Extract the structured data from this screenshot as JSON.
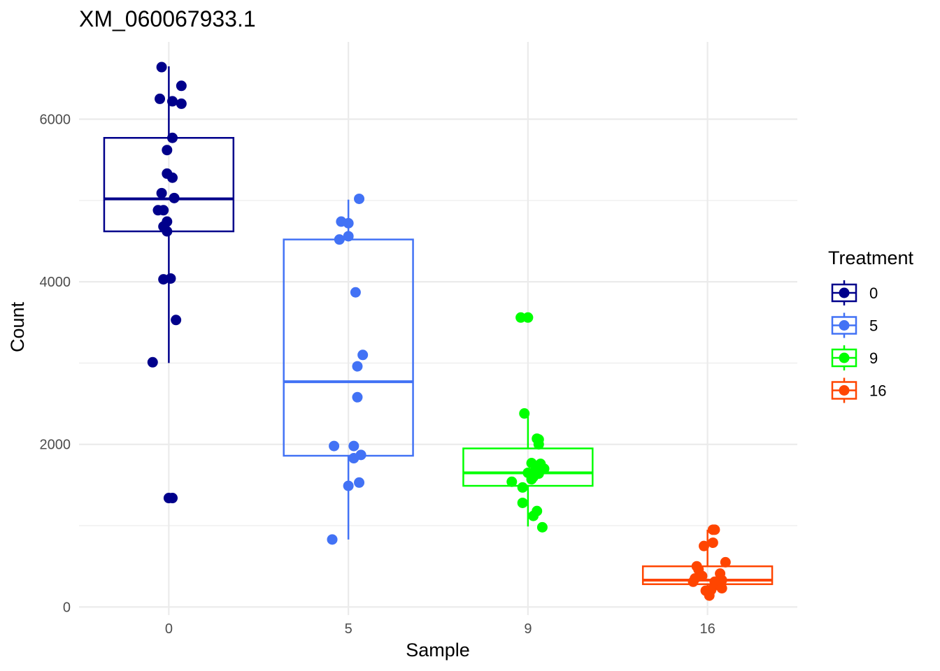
{
  "chart_data": {
    "type": "boxplot",
    "title": "XM_060067933.1",
    "xlabel": "Sample",
    "ylabel": "Count",
    "categories": [
      "0",
      "5",
      "9",
      "16"
    ],
    "y_ticks": [
      0,
      2000,
      4000,
      6000
    ],
    "y_tick_labels": [
      "0",
      "2000",
      "4000",
      "6000"
    ],
    "ylim": [
      -100,
      6950
    ],
    "grid": true,
    "legend": {
      "title": "Treatment",
      "position": "right",
      "entries": [
        "0",
        "5",
        "9",
        "16"
      ]
    },
    "series": [
      {
        "name": "0",
        "color": "#00008b",
        "box": {
          "whisker_low": 3000,
          "q1": 4620,
          "median": 5020,
          "q3": 5770,
          "whisker_high": 6650
        },
        "points": [
          [
            -0.04,
            6640
          ],
          [
            0.07,
            6410
          ],
          [
            -0.05,
            6250
          ],
          [
            0.02,
            6220
          ],
          [
            0.07,
            6190
          ],
          [
            0.02,
            5770
          ],
          [
            -0.01,
            5620
          ],
          [
            -0.01,
            5330
          ],
          [
            0.02,
            5280
          ],
          [
            -0.04,
            5090
          ],
          [
            0.03,
            5030
          ],
          [
            -0.06,
            4880
          ],
          [
            -0.03,
            4880
          ],
          [
            -0.01,
            4740
          ],
          [
            -0.03,
            4680
          ],
          [
            -0.01,
            4620
          ],
          [
            -0.03,
            4030
          ],
          [
            0.01,
            4040
          ],
          [
            0.04,
            3530
          ],
          [
            -0.09,
            3010
          ],
          [
            0.0,
            1340
          ],
          [
            0.02,
            1340
          ]
        ]
      },
      {
        "name": "5",
        "color": "#4272f5",
        "box": {
          "whisker_low": 830,
          "q1": 1860,
          "median": 2770,
          "q3": 4520,
          "whisker_high": 5010
        },
        "points": [
          [
            0.06,
            5020
          ],
          [
            -0.04,
            4740
          ],
          [
            0.0,
            4720
          ],
          [
            0.0,
            4560
          ],
          [
            -0.05,
            4520
          ],
          [
            0.04,
            3870
          ],
          [
            0.08,
            3100
          ],
          [
            0.05,
            2960
          ],
          [
            0.05,
            2580
          ],
          [
            -0.08,
            1980
          ],
          [
            0.03,
            1980
          ],
          [
            0.07,
            1870
          ],
          [
            0.03,
            1830
          ],
          [
            0.06,
            1530
          ],
          [
            0.0,
            1490
          ],
          [
            -0.09,
            830
          ]
        ]
      },
      {
        "name": "9",
        "color": "#00ff00",
        "box": {
          "whisker_low": 990,
          "q1": 1490,
          "median": 1650,
          "q3": 1950,
          "whisker_high": 2380
        },
        "points": [
          [
            -0.04,
            3560
          ],
          [
            0.0,
            3560
          ],
          [
            -0.02,
            2380
          ],
          [
            0.05,
            2070
          ],
          [
            0.06,
            2060
          ],
          [
            0.06,
            2000
          ],
          [
            0.02,
            1770
          ],
          [
            0.07,
            1760
          ],
          [
            0.09,
            1700
          ],
          [
            0.04,
            1670
          ],
          [
            0.0,
            1650
          ],
          [
            0.06,
            1640
          ],
          [
            0.03,
            1600
          ],
          [
            0.02,
            1570
          ],
          [
            -0.09,
            1540
          ],
          [
            -0.03,
            1470
          ],
          [
            -0.03,
            1280
          ],
          [
            0.05,
            1180
          ],
          [
            0.03,
            1120
          ],
          [
            0.08,
            980
          ]
        ]
      },
      {
        "name": "16",
        "color": "#ff4500",
        "box": {
          "whisker_low": 140,
          "q1": 280,
          "median": 330,
          "q3": 500,
          "whisker_high": 950
        },
        "points": [
          [
            0.03,
            950
          ],
          [
            0.04,
            950
          ],
          [
            0.03,
            790
          ],
          [
            -0.02,
            750
          ],
          [
            0.1,
            550
          ],
          [
            -0.06,
            500
          ],
          [
            -0.05,
            460
          ],
          [
            0.07,
            410
          ],
          [
            -0.03,
            380
          ],
          [
            -0.07,
            350
          ],
          [
            0.08,
            330
          ],
          [
            0.04,
            310
          ],
          [
            -0.08,
            310
          ],
          [
            0.05,
            270
          ],
          [
            0.08,
            230
          ],
          [
            0.02,
            210
          ],
          [
            -0.01,
            200
          ],
          [
            0.01,
            140
          ]
        ]
      }
    ]
  }
}
